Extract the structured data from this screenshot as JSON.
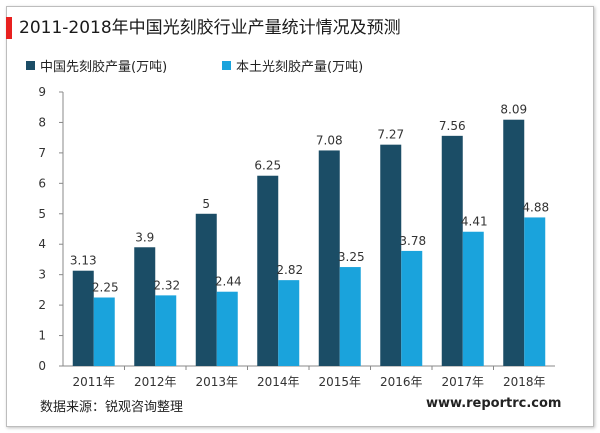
{
  "title": "2011-2018年中国光刻胶行业产量统计情况及预测",
  "source": "数据来源：锐观咨询整理",
  "website": "www.reportrc.com",
  "colors": {
    "accent": "#e8201f",
    "series1": "#1b4d66",
    "series2": "#1aa3dc"
  },
  "chart_data": {
    "type": "bar",
    "title": "2011-2018年中国光刻胶行业产量统计情况及预测",
    "xlabel": "",
    "ylabel": "",
    "categories": [
      "2011年",
      "2012年",
      "2013年",
      "2014年",
      "2015年",
      "2016年",
      "2017年",
      "2018年"
    ],
    "series": [
      {
        "name": "中国先刻胶产量(万吨)",
        "values": [
          3.13,
          3.9,
          5,
          6.25,
          7.08,
          7.27,
          7.56,
          8.09
        ],
        "labels": [
          "3.13",
          "3.9",
          "5",
          "6.25",
          "7.08",
          "7.27",
          "7.56",
          "8.09"
        ]
      },
      {
        "name": "本土光刻胶产量(万吨)",
        "values": [
          2.25,
          2.32,
          2.44,
          2.82,
          3.25,
          3.78,
          4.41,
          4.88
        ],
        "labels": [
          "2.25",
          "2.32",
          "2.44",
          "2.82",
          "3.25",
          "3.78",
          "4.41",
          "4.88"
        ]
      }
    ],
    "ylim": [
      0,
      9
    ],
    "yticks": [
      "0",
      "1",
      "2",
      "3",
      "4",
      "5",
      "6",
      "7",
      "8",
      "9"
    ],
    "grid": false,
    "legend_position": "top-left"
  }
}
